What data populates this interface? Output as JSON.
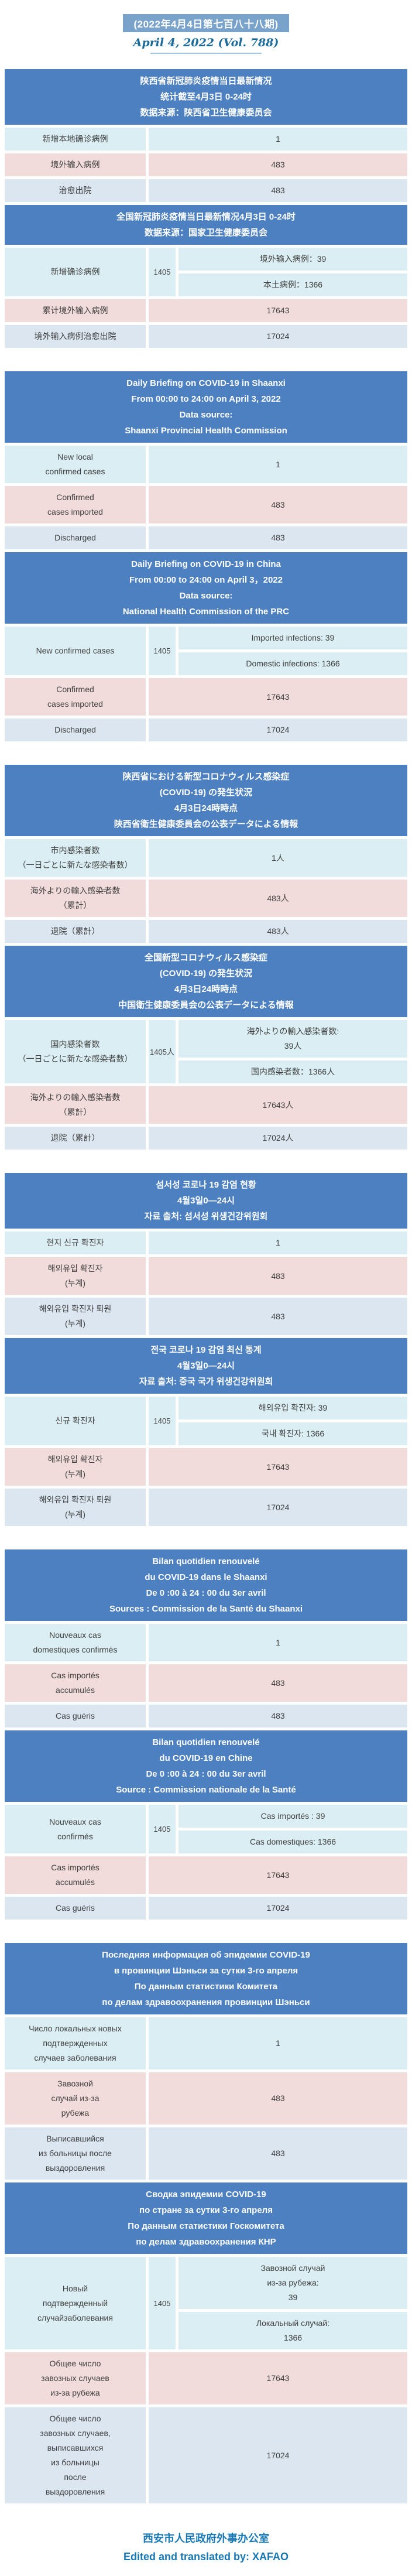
{
  "masthead": {
    "issue_cn": "(2022年4月4日第七百八十八期)",
    "date_en": "April 4, 2022 (Vol. 788)"
  },
  "colors": {
    "header_blue": "#4c80c0",
    "tint_cyan": "#daeef3",
    "tint_pink": "#f2dcdb",
    "tint_periwinkle": "#dce6f1",
    "masthead_box_blue": "#79a3ca",
    "date_text_blue": "#1a6a9c",
    "footer_text_blue": "#1878b4"
  },
  "sections": [
    {
      "id": "chinese",
      "provincial": {
        "header": [
          "陕西省新冠肺炎疫情当日最新情况",
          "统计截至4月3日 0-24时",
          "数据来源：陕西省卫生健康委员会"
        ],
        "rows": [
          {
            "label": "新增本地确诊病例",
            "value": "1"
          },
          {
            "label": "境外输入病例",
            "value": "483"
          },
          {
            "label": "治愈出院",
            "value": "483"
          }
        ]
      },
      "national": {
        "header": [
          "全国新冠肺炎疫情当日最新情况4月3日 0-24时",
          "数据来源：国家卫生健康委员会"
        ],
        "new_cases": {
          "label": "新增确诊病例",
          "total": "1405",
          "breakdown": [
            "境外输入病例：39",
            "本土病例：1366"
          ]
        },
        "rows": [
          {
            "label": "累计境外输入病例",
            "value": "17643"
          },
          {
            "label": "境外输入病例治愈出院",
            "value": "17024"
          }
        ]
      }
    },
    {
      "id": "english",
      "provincial": {
        "header": [
          "Daily Briefing on COVID-19 in Shaanxi",
          "From 00:00 to 24:00 on April 3, 2022",
          "Data source:",
          "Shaanxi Provincial Health Commission"
        ],
        "rows": [
          {
            "label": [
              "New local",
              "confirmed cases"
            ],
            "value": "1"
          },
          {
            "label": [
              "Confirmed",
              "cases imported"
            ],
            "value": "483"
          },
          {
            "label": "Discharged",
            "value": "483"
          }
        ]
      },
      "national": {
        "header": [
          "Daily Briefing on COVID-19 in China",
          "From 00:00 to 24:00 on  April 3，2022",
          "Data source:",
          "National Health Commission of the PRC"
        ],
        "new_cases": {
          "label": "New confirmed cases",
          "total": "1405",
          "breakdown": [
            "Imported infections: 39",
            "Domestic infections: 1366"
          ]
        },
        "rows": [
          {
            "label": [
              "Confirmed",
              "cases imported"
            ],
            "value": "17643"
          },
          {
            "label": "Discharged",
            "value": "17024"
          }
        ]
      }
    },
    {
      "id": "japanese",
      "provincial": {
        "header": [
          "陝西省における新型コロナウィルス感染症",
          "(COVID-19) の発生状況",
          "4月3日24時時点",
          "陝西省衛生健康委員会の公表データによる情報"
        ],
        "rows": [
          {
            "label": [
              "市内感染者数",
              "（一日ごとに新たな感染者数）"
            ],
            "value": "1人"
          },
          {
            "label": [
              "海外よりの輸入感染者数",
              "（累計）"
            ],
            "value": "483人"
          },
          {
            "label": "退院（累計）",
            "value": "483人"
          }
        ]
      },
      "national": {
        "header": [
          "全国新型コロナウィルス感染症",
          "(COVID-19) の発生状況",
          "4月3日24時時点",
          "中国衛生健康委員会の公表データによる情報"
        ],
        "new_cases": {
          "label": [
            "国内感染者数",
            "（一日ごとに新たな感染者数）"
          ],
          "total": "1405人",
          "breakdown": [
            [
              "海外よりの輸入感染者数:",
              "39人"
            ],
            "国内感染者数：1366人"
          ]
        },
        "rows": [
          {
            "label": [
              "海外よりの輸入感染者数",
              "（累計）"
            ],
            "value": "17643人"
          },
          {
            "label": "退院（累計）",
            "value": "17024人"
          }
        ]
      }
    },
    {
      "id": "korean",
      "provincial": {
        "header": [
          "섬서성 코로나 19 감염 현황",
          "4월3일0—24시",
          "자료 출처: 섬서성 위생건강위원회"
        ],
        "rows": [
          {
            "label": "현지 신규 확진자",
            "value": "1"
          },
          {
            "label": [
              "해외유입 확진자",
              "(누계)"
            ],
            "value": "483"
          },
          {
            "label": [
              "해외유입 확진자 퇴원",
              "(누계)"
            ],
            "value": "483"
          }
        ]
      },
      "national": {
        "header": [
          "전국 코로나 19 감염 최신 통계",
          "4월3일0—24시",
          "자료 출처: 중국 국가 위생건강위원회"
        ],
        "new_cases": {
          "label": "신규 확진자",
          "total": "1405",
          "breakdown": [
            "해외유입 확진자:  39",
            "국내 확진자:  1366"
          ]
        },
        "rows": [
          {
            "label": [
              "해외유입 확진자",
              "(누계)"
            ],
            "value": "17643"
          },
          {
            "label": [
              "해외유입 확진자 퇴원",
              "(누계)"
            ],
            "value": "17024"
          }
        ]
      }
    },
    {
      "id": "french",
      "provincial": {
        "header": [
          "Bilan quotidien renouvelé",
          "du COVID-19 dans le Shaanxi",
          "De 0 :00 à 24 : 00 du 3er avril",
          "Sources : Commission de la Santé du Shaanxi"
        ],
        "rows": [
          {
            "label": [
              "Nouveaux cas",
              "domestiques confirmés"
            ],
            "value": "1"
          },
          {
            "label": [
              "Cas importés",
              "accumulés"
            ],
            "value": "483"
          },
          {
            "label": "Cas guéris",
            "value": "483"
          }
        ]
      },
      "national": {
        "header": [
          "Bilan quotidien renouvelé",
          "du COVID-19 en Chine",
          "De 0 :00 à 24 : 00 du 3er avril",
          "Source : Commission nationale de la Santé"
        ],
        "new_cases": {
          "label": [
            "Nouveaux cas",
            "confirmés"
          ],
          "total": "1405",
          "breakdown": [
            "Cas importés : 39",
            "Cas domestiques: 1366"
          ]
        },
        "rows": [
          {
            "label": [
              "Cas importés",
              "accumulés"
            ],
            "value": "17643"
          },
          {
            "label": "Cas guéris",
            "value": "17024"
          }
        ]
      }
    },
    {
      "id": "russian",
      "provincial": {
        "header": [
          "Последняя информация об эпидемии COVID-19",
          "в провинции Шэньси за сутки 3-го  апреля",
          "По данным статистики Комитета",
          "по делам здравоохранения провинции Шэньси"
        ],
        "rows": [
          {
            "label": [
              "Число локальных новых",
              "подтвержденных",
              "случаев заболевания"
            ],
            "value": "1"
          },
          {
            "label": [
              "Завозной",
              "случай из-за",
              "рубежа"
            ],
            "value": "483"
          },
          {
            "label": [
              "Выписавшийся",
              "из больницы после",
              "выздоровления"
            ],
            "value": "483"
          }
        ]
      },
      "national": {
        "header": [
          "Сводка эпидемии COVID-19",
          "по стране за сутки 3-го  апреля",
          "По данным статистики Госкомитета",
          "по делам здравоохранения КНР"
        ],
        "new_cases": {
          "label": [
            "Новый",
            "подтвержденный",
            "случайзаболевания"
          ],
          "total": "1405",
          "breakdown": [
            [
              "Завозной случай",
              "из-за рубежа:",
              "39"
            ],
            [
              "Локальный случай:",
              "1366"
            ]
          ]
        },
        "rows": [
          {
            "label": [
              "Общее число",
              "завозных случаев",
              "из-за рубежа"
            ],
            "value": "17643"
          },
          {
            "label": [
              "Общее число",
              "завозных случаев,",
              "выписавшихся",
              "из больницы",
              "после",
              "выздоровления"
            ],
            "value": "17024"
          }
        ]
      }
    }
  ],
  "footer": {
    "org_cn": "西安市人民政府外事办公室",
    "credit_en": "Edited and translated by: XAFAO"
  }
}
